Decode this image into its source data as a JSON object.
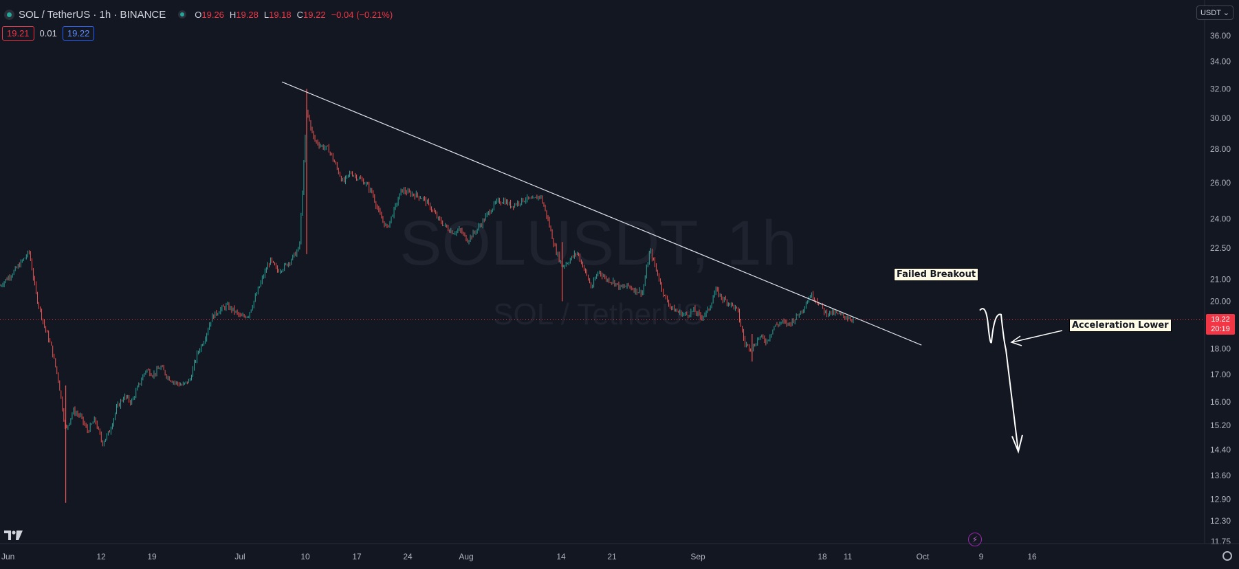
{
  "header": {
    "title": "SOL / TetherUS · 1h · BINANCE",
    "ohlc": {
      "o_label": "O",
      "o_value": "19.26",
      "h_label": "H",
      "h_value": "19.28",
      "l_label": "L",
      "l_value": "19.18",
      "c_label": "C",
      "c_value": "19.22",
      "change": "−0.04 (−0.21%)"
    }
  },
  "quote": {
    "sell": "19.21",
    "spread": "0.01",
    "buy": "19.22"
  },
  "currency_button": "USDT",
  "watermark": {
    "main": "SOLUSDT, 1h",
    "sub": "SOL / TetherUS"
  },
  "price_tag": {
    "price": "19.22",
    "countdown": "20:19"
  },
  "annotations": {
    "failed_breakout": "Failed Breakout",
    "acceleration_lower": "Acceleration Lower"
  },
  "colors": {
    "background": "#131722",
    "up": "#26a69a",
    "down": "#ef5350",
    "price_line": "#f23645"
  },
  "chart_data": {
    "type": "candlestick",
    "symbol": "SOLUSDT",
    "interval": "1h",
    "y_scale": "log",
    "y_ticks": [
      36,
      34,
      32,
      30,
      28,
      26,
      24,
      22.5,
      21,
      20,
      19,
      18,
      17,
      16,
      15.2,
      14.4,
      13.6,
      12.9,
      12.3,
      11.75
    ],
    "x_ticks": [
      "Jun",
      "12",
      "19",
      "Jul",
      "10",
      "17",
      "24",
      "Aug",
      "14",
      "21",
      "Sep",
      "11",
      "18",
      "Oct",
      "9",
      "16"
    ],
    "current_price": 19.22,
    "trendline": {
      "from": [
        "Jul 13",
        32.5
      ],
      "to": [
        "Oct 2",
        17.5
      ]
    },
    "projection": [
      "19.6",
      "19.0",
      "18.6",
      "19.6",
      "18.3",
      "14.3"
    ],
    "price_path": [
      [
        "Jun 1",
        20.7
      ],
      [
        "Jun 3",
        21.4
      ],
      [
        "Jun 5",
        22.3
      ],
      [
        "Jun 6",
        20.2
      ],
      [
        "Jun 7",
        19.0
      ],
      [
        "Jun 8",
        18.1
      ],
      [
        "Jun 9",
        16.8
      ],
      [
        "Jun 10",
        15.0
      ],
      [
        "Jun 11",
        15.7
      ],
      [
        "Jun 12",
        15.5
      ],
      [
        "Jun 13",
        15.0
      ],
      [
        "Jun 14",
        15.4
      ],
      [
        "Jun 15",
        14.6
      ],
      [
        "Jun 16",
        15.0
      ],
      [
        "Jun 17",
        15.8
      ],
      [
        "Jun 18",
        16.2
      ],
      [
        "Jun 19",
        16.0
      ],
      [
        "Jun 20",
        16.6
      ],
      [
        "Jun 21",
        17.2
      ],
      [
        "Jun 22",
        17.0
      ],
      [
        "Jun 23",
        17.3
      ],
      [
        "Jun 24",
        16.9
      ],
      [
        "Jun 25",
        16.7
      ],
      [
        "Jun 26",
        16.6
      ],
      [
        "Jun 27",
        16.8
      ],
      [
        "Jun 28",
        17.8
      ],
      [
        "Jun 29",
        18.4
      ],
      [
        "Jun 30",
        19.3
      ],
      [
        "Jul 1",
        19.6
      ],
      [
        "Jul 2",
        19.8
      ],
      [
        "Jul 3",
        19.6
      ],
      [
        "Jul 4",
        19.3
      ],
      [
        "Jul 5",
        19.4
      ],
      [
        "Jul 6",
        20.2
      ],
      [
        "Jul 7",
        21.1
      ],
      [
        "Jul 8",
        21.9
      ],
      [
        "Jul 9",
        21.4
      ],
      [
        "Jul 10",
        21.6
      ],
      [
        "Jul 11",
        22.0
      ],
      [
        "Jul 12",
        22.5
      ],
      [
        "Jul 13",
        30.5
      ],
      [
        "Jul 14",
        28.6
      ],
      [
        "Jul 15",
        28.2
      ],
      [
        "Jul 16",
        28.0
      ],
      [
        "Jul 17",
        27.0
      ],
      [
        "Jul 18",
        26.0
      ],
      [
        "Jul 19",
        26.6
      ],
      [
        "Jul 20",
        26.3
      ],
      [
        "Jul 21",
        26.0
      ],
      [
        "Jul 22",
        25.4
      ],
      [
        "Jul 23",
        24.2
      ],
      [
        "Jul 24",
        23.5
      ],
      [
        "Jul 25",
        24.5
      ],
      [
        "Jul 26",
        25.6
      ],
      [
        "Jul 27",
        25.4
      ],
      [
        "Jul 28",
        25.3
      ],
      [
        "Jul 29",
        25.1
      ],
      [
        "Jul 30",
        24.6
      ],
      [
        "Jul 31",
        24.0
      ],
      [
        "Aug 1",
        23.6
      ],
      [
        "Aug 2",
        23.3
      ],
      [
        "Aug 3",
        23.4
      ],
      [
        "Aug 4",
        22.9
      ],
      [
        "Aug 5",
        23.3
      ],
      [
        "Aug 6",
        23.8
      ],
      [
        "Aug 7",
        24.4
      ],
      [
        "Aug 8",
        24.9
      ],
      [
        "Aug 9",
        25.0
      ],
      [
        "Aug 10",
        24.7
      ],
      [
        "Aug 11",
        24.9
      ],
      [
        "Aug 12",
        25.1
      ],
      [
        "Aug 13",
        25.0
      ],
      [
        "Aug 14",
        25.3
      ],
      [
        "Aug 15",
        24.0
      ],
      [
        "Aug 16",
        22.5
      ],
      [
        "Aug 17",
        21.6
      ],
      [
        "Aug 18",
        21.9
      ],
      [
        "Aug 19",
        22.3
      ],
      [
        "Aug 20",
        21.5
      ],
      [
        "Aug 21",
        20.6
      ],
      [
        "Aug 22",
        21.4
      ],
      [
        "Aug 23",
        21.0
      ],
      [
        "Aug 24",
        20.9
      ],
      [
        "Aug 25",
        20.6
      ],
      [
        "Aug 26",
        20.7
      ],
      [
        "Aug 27",
        20.5
      ],
      [
        "Aug 28",
        20.4
      ],
      [
        "Aug 29",
        22.4
      ],
      [
        "Aug 30",
        21.3
      ],
      [
        "Aug 31",
        20.2
      ],
      [
        "Sep 1",
        19.7
      ],
      [
        "Sep 2",
        19.5
      ],
      [
        "Sep 3",
        19.4
      ],
      [
        "Sep 4",
        19.6
      ],
      [
        "Sep 5",
        19.3
      ],
      [
        "Sep 6",
        19.6
      ],
      [
        "Sep 7",
        20.5
      ],
      [
        "Sep 8",
        20.1
      ],
      [
        "Sep 9",
        19.9
      ],
      [
        "Sep 10",
        19.6
      ],
      [
        "Sep 11",
        18.2
      ],
      [
        "Sep 12",
        18.0
      ],
      [
        "Sep 13",
        18.5
      ],
      [
        "Sep 14",
        18.3
      ],
      [
        "Sep 15",
        18.9
      ],
      [
        "Sep 16",
        19.1
      ],
      [
        "Sep 17",
        19.0
      ],
      [
        "Sep 18",
        19.3
      ],
      [
        "Sep 19",
        19.7
      ],
      [
        "Sep 20",
        20.3
      ],
      [
        "Sep 21",
        20.0
      ],
      [
        "Sep 22",
        19.5
      ],
      [
        "Sep 23",
        19.5
      ],
      [
        "Sep 24",
        19.4
      ],
      [
        "Sep 25",
        19.3
      ],
      [
        "Sep 26",
        19.22
      ]
    ]
  }
}
